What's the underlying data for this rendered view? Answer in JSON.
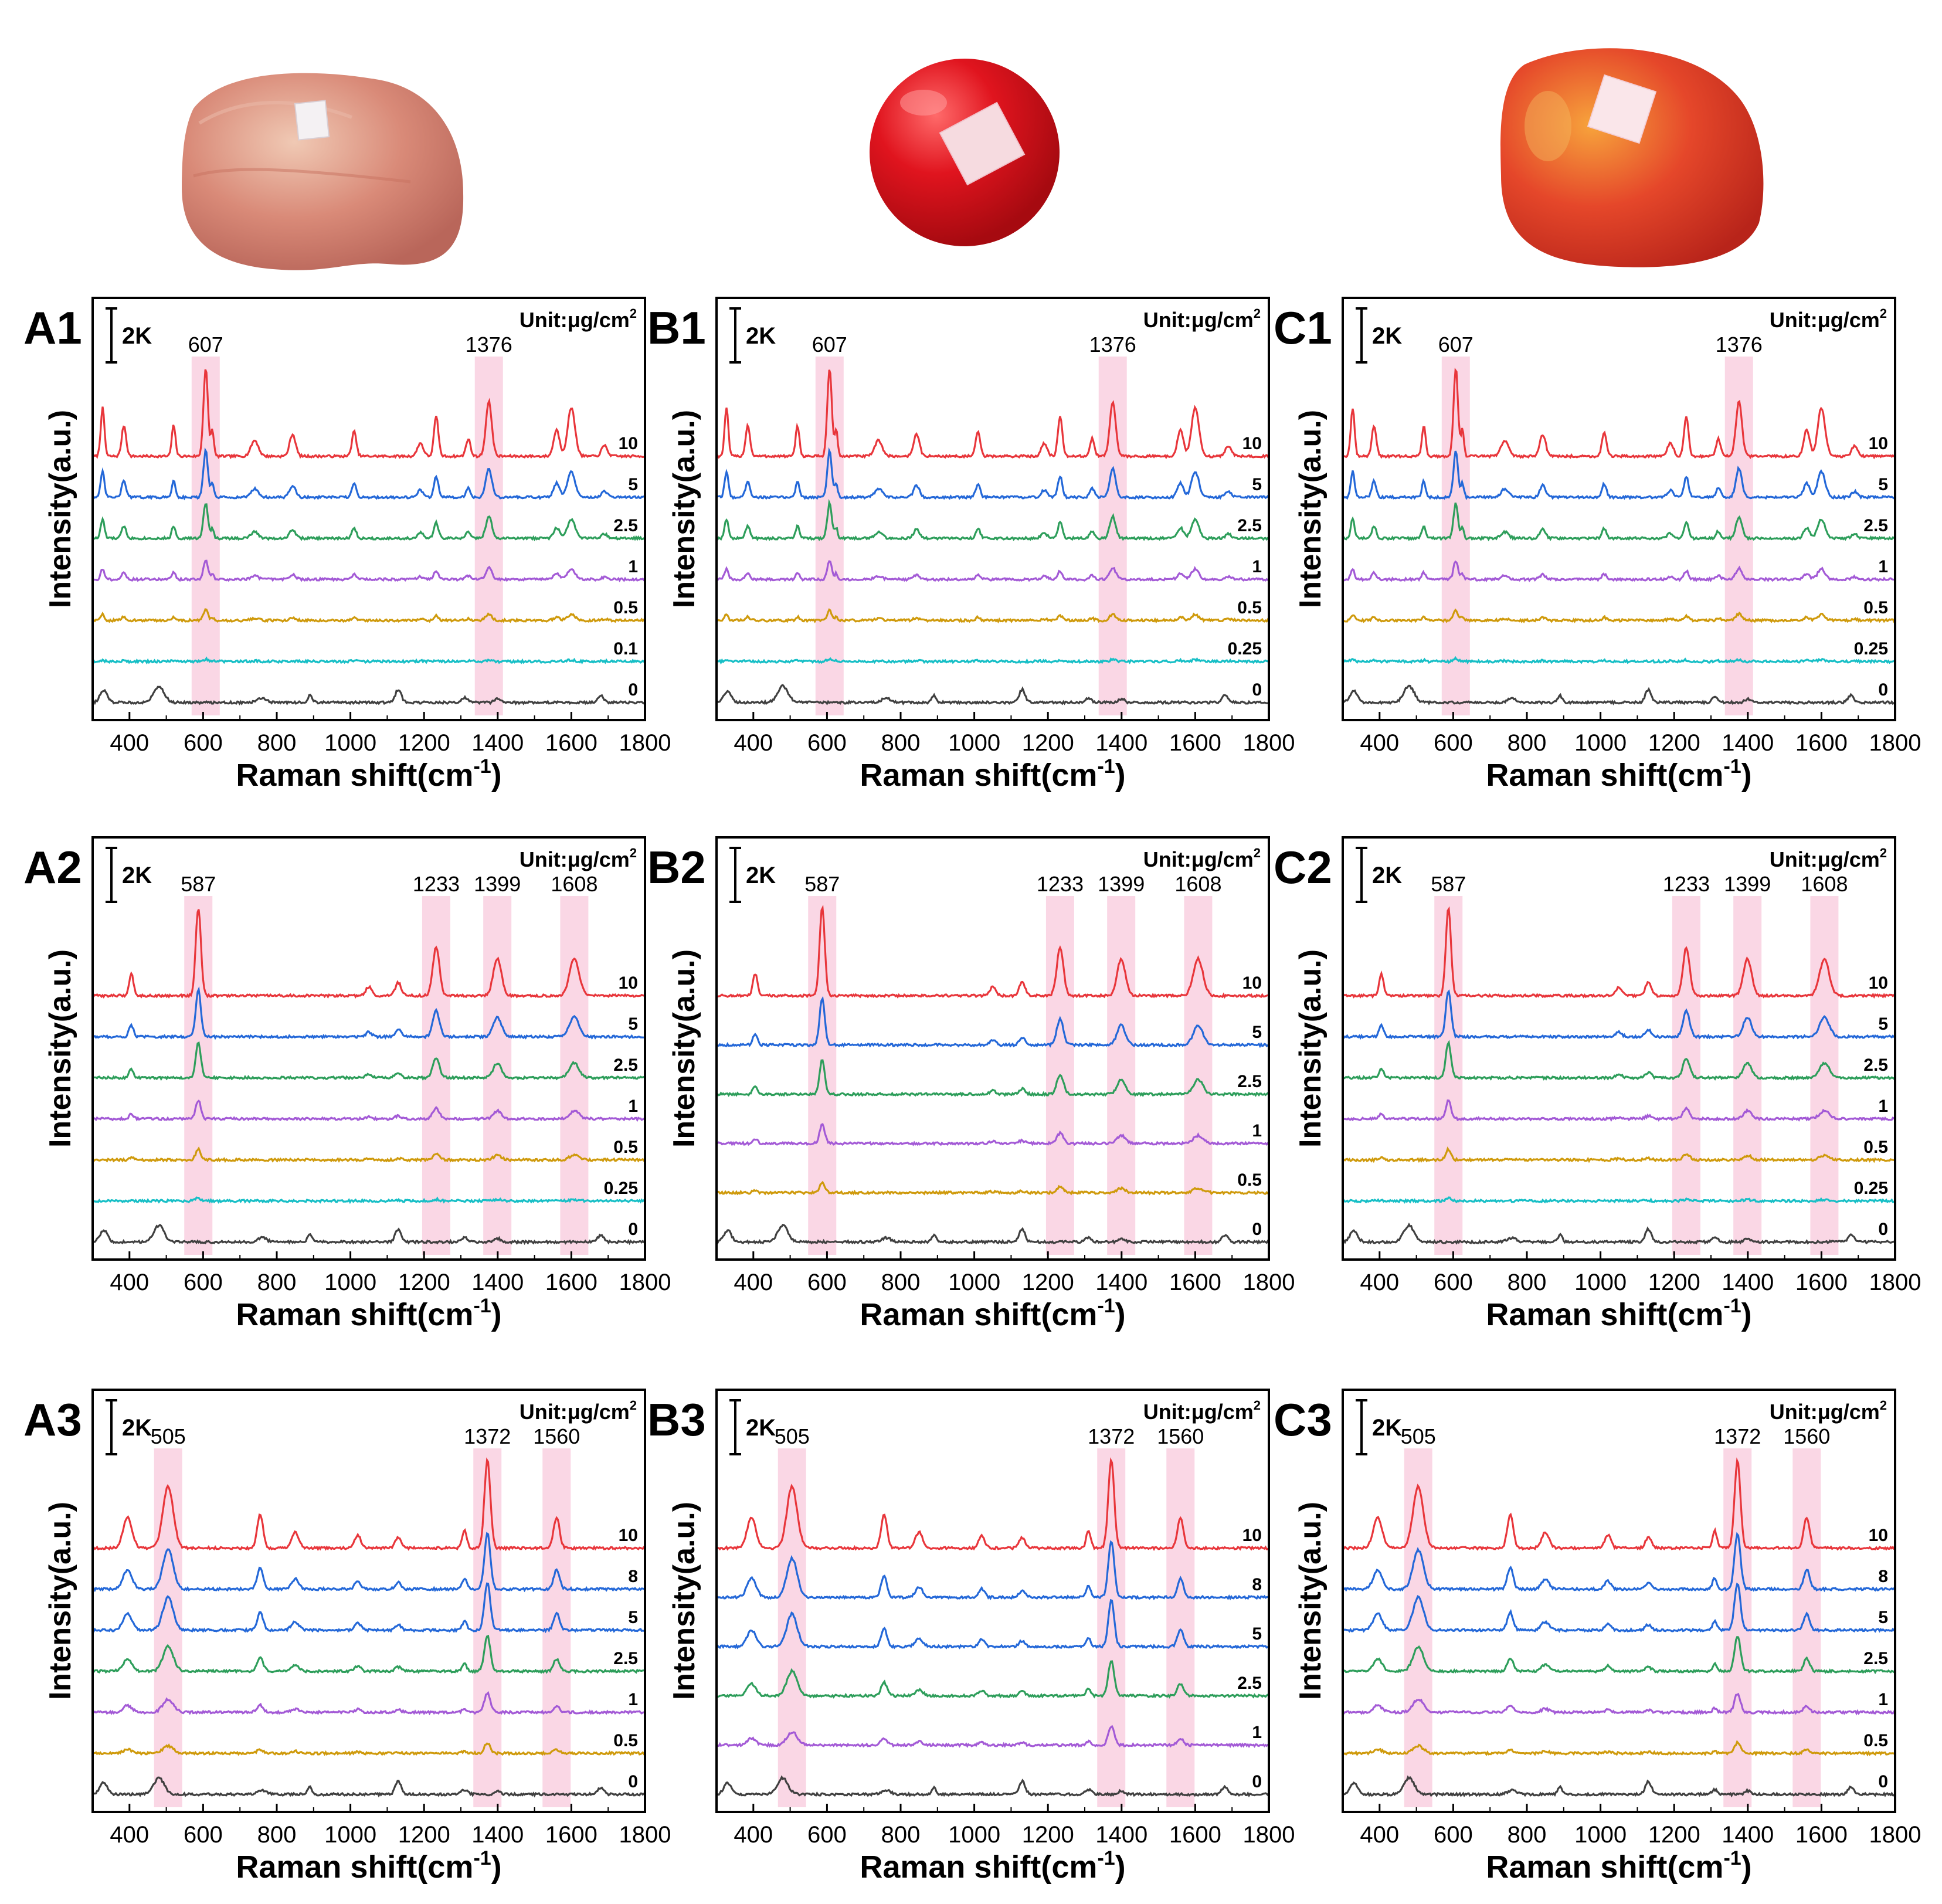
{
  "colors": {
    "10": "#e8363b",
    "8": "#2468d8",
    "5": "#2468d8",
    "2.5": "#2e9e5b",
    "1": "#a35ad6",
    "0.5": "#cf9a0c",
    "0.25": "#17bfc6",
    "0.1": "#17bfc6",
    "0": "#404040",
    "highlight": "#f8c9dc",
    "fruit_a": "#d8806e",
    "fruit_b": "#d8121c",
    "fruit_c": "#e0401e"
  },
  "fruits": [
    {
      "name": "apple-photo-1"
    },
    {
      "name": "tomato-photo"
    },
    {
      "name": "apple-photo-2"
    }
  ],
  "chart_data": [
    {
      "panel": "A1",
      "type": "line",
      "xlabel": "Raman shift(cm",
      "xlabel_sup": "-1",
      "xlabel_close": ")",
      "ylabel": "Intensity(a.u.)",
      "xlim": [
        300,
        1800
      ],
      "xticks": [
        "400",
        "600",
        "800",
        "1000",
        "1200",
        "1400",
        "1600",
        "1800"
      ],
      "scale_bar": "2K",
      "unit": "Unit:μg/cm",
      "unit_sup": "2",
      "highlights": [
        {
          "center": 607,
          "label": "607"
        },
        {
          "center": 1376,
          "label": "1376"
        }
      ],
      "series": [
        "10",
        "5",
        "2.5",
        "1",
        "0.5",
        "0.1",
        "0"
      ]
    },
    {
      "panel": "B1",
      "type": "line",
      "xlabel": "Raman shift(cm",
      "xlabel_sup": "-1",
      "xlabel_close": ")",
      "ylabel": "Intensity(a.u.)",
      "xlim": [
        300,
        1800
      ],
      "xticks": [
        "400",
        "600",
        "800",
        "1000",
        "1200",
        "1400",
        "1600",
        "1800"
      ],
      "scale_bar": "2K",
      "unit": "Unit:μg/cm",
      "unit_sup": "2",
      "highlights": [
        {
          "center": 607,
          "label": "607"
        },
        {
          "center": 1376,
          "label": "1376"
        }
      ],
      "series": [
        "10",
        "5",
        "2.5",
        "1",
        "0.5",
        "0.25",
        "0"
      ]
    },
    {
      "panel": "C1",
      "type": "line",
      "xlabel": "Raman shift(cm",
      "xlabel_sup": "-1",
      "xlabel_close": ")",
      "ylabel": "Intensity(a.u.)",
      "xlim": [
        300,
        1800
      ],
      "xticks": [
        "400",
        "600",
        "800",
        "1000",
        "1200",
        "1400",
        "1600",
        "1800"
      ],
      "scale_bar": "2K",
      "unit": "Unit:μg/cm",
      "unit_sup": "2",
      "highlights": [
        {
          "center": 607,
          "label": "607"
        },
        {
          "center": 1376,
          "label": "1376"
        }
      ],
      "series": [
        "10",
        "5",
        "2.5",
        "1",
        "0.5",
        "0.25",
        "0"
      ]
    },
    {
      "panel": "A2",
      "type": "line",
      "xlabel": "Raman shift(cm",
      "xlabel_sup": "-1",
      "xlabel_close": ")",
      "ylabel": "Intensity(a.u.)",
      "xlim": [
        300,
        1800
      ],
      "xticks": [
        "400",
        "600",
        "800",
        "1000",
        "1200",
        "1400",
        "1600",
        "1800"
      ],
      "scale_bar": "2K",
      "unit": "Unit:μg/cm",
      "unit_sup": "2",
      "highlights": [
        {
          "center": 587,
          "label": "587"
        },
        {
          "center": 1233,
          "label": "1233"
        },
        {
          "center": 1399,
          "label": "1399"
        },
        {
          "center": 1608,
          "label": "1608"
        }
      ],
      "series": [
        "10",
        "5",
        "2.5",
        "1",
        "0.5",
        "0.25",
        "0"
      ]
    },
    {
      "panel": "B2",
      "type": "line",
      "xlabel": "Raman shift(cm",
      "xlabel_sup": "-1",
      "xlabel_close": ")",
      "ylabel": "Intensity(a.u.)",
      "xlim": [
        300,
        1800
      ],
      "xticks": [
        "400",
        "600",
        "800",
        "1000",
        "1200",
        "1400",
        "1600",
        "1800"
      ],
      "scale_bar": "2K",
      "unit": "Unit:μg/cm",
      "unit_sup": "2",
      "highlights": [
        {
          "center": 587,
          "label": "587"
        },
        {
          "center": 1233,
          "label": "1233"
        },
        {
          "center": 1399,
          "label": "1399"
        },
        {
          "center": 1608,
          "label": "1608"
        }
      ],
      "series": [
        "10",
        "5",
        "2.5",
        "1",
        "0.5",
        "0"
      ]
    },
    {
      "panel": "C2",
      "type": "line",
      "xlabel": "Raman shift(cm",
      "xlabel_sup": "-1",
      "xlabel_close": ")",
      "ylabel": "Intensity(a.u.)",
      "xlim": [
        300,
        1800
      ],
      "xticks": [
        "400",
        "600",
        "800",
        "1000",
        "1200",
        "1400",
        "1600",
        "1800"
      ],
      "scale_bar": "2K",
      "unit": "Unit:μg/cm",
      "unit_sup": "2",
      "highlights": [
        {
          "center": 587,
          "label": "587"
        },
        {
          "center": 1233,
          "label": "1233"
        },
        {
          "center": 1399,
          "label": "1399"
        },
        {
          "center": 1608,
          "label": "1608"
        }
      ],
      "series": [
        "10",
        "5",
        "2.5",
        "1",
        "0.5",
        "0.25",
        "0"
      ]
    },
    {
      "panel": "A3",
      "type": "line",
      "xlabel": "Raman shift(cm",
      "xlabel_sup": "-1",
      "xlabel_close": ")",
      "ylabel": "Intensity(a.u.)",
      "xlim": [
        300,
        1800
      ],
      "xticks": [
        "400",
        "600",
        "800",
        "1000",
        "1200",
        "1400",
        "1600",
        "1800"
      ],
      "scale_bar": "2K",
      "unit": "Unit:μg/cm",
      "unit_sup": "2",
      "highlights": [
        {
          "center": 505,
          "label": "505"
        },
        {
          "center": 1372,
          "label": "1372"
        },
        {
          "center": 1560,
          "label": "1560"
        }
      ],
      "series": [
        "10",
        "8",
        "5",
        "2.5",
        "1",
        "0.5",
        "0"
      ]
    },
    {
      "panel": "B3",
      "type": "line",
      "xlabel": "Raman shift(cm",
      "xlabel_sup": "-1",
      "xlabel_close": ")",
      "ylabel": "Intensity(a.u.)",
      "xlim": [
        300,
        1800
      ],
      "xticks": [
        "400",
        "600",
        "800",
        "1000",
        "1200",
        "1400",
        "1600",
        "1800"
      ],
      "scale_bar": "2K",
      "unit": "Unit:μg/cm",
      "unit_sup": "2",
      "highlights": [
        {
          "center": 505,
          "label": "505"
        },
        {
          "center": 1372,
          "label": "1372"
        },
        {
          "center": 1560,
          "label": "1560"
        }
      ],
      "series": [
        "10",
        "8",
        "5",
        "2.5",
        "1",
        "0"
      ]
    },
    {
      "panel": "C3",
      "type": "line",
      "xlabel": "Raman shift(cm",
      "xlabel_sup": "-1",
      "xlabel_close": ")",
      "ylabel": "Intensity(a.u.)",
      "xlim": [
        300,
        1800
      ],
      "xticks": [
        "400",
        "600",
        "800",
        "1000",
        "1200",
        "1400",
        "1600",
        "1800"
      ],
      "scale_bar": "2K",
      "unit": "Unit:μg/cm",
      "unit_sup": "2",
      "highlights": [
        {
          "center": 505,
          "label": "505"
        },
        {
          "center": 1372,
          "label": "1372"
        },
        {
          "center": 1560,
          "label": "1560"
        }
      ],
      "series": [
        "10",
        "8",
        "5",
        "2.5",
        "1",
        "0.5",
        "0"
      ]
    }
  ]
}
